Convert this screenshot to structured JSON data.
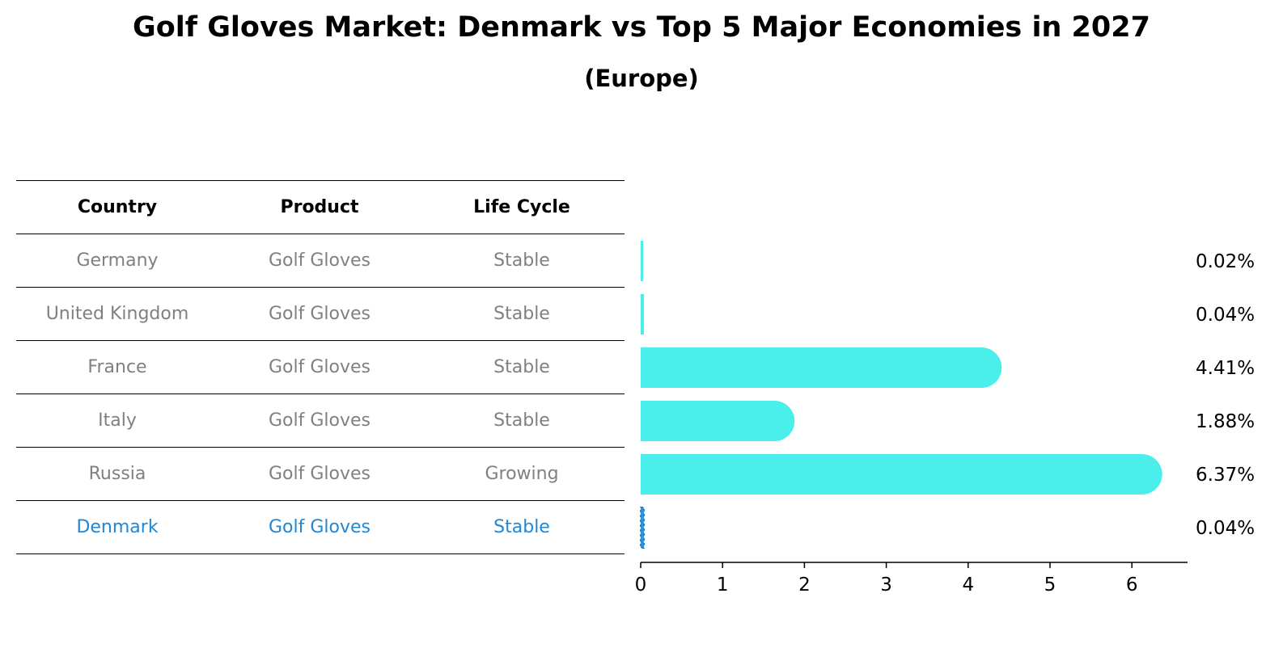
{
  "title": "Golf Gloves Market: Denmark vs Top 5 Major Economies in 2027",
  "subtitle": "(Europe)",
  "table": {
    "headers": [
      "Country",
      "Product",
      "Life Cycle"
    ],
    "rows": [
      {
        "country": "Germany",
        "product": "Golf Gloves",
        "life_cycle": "Stable"
      },
      {
        "country": "United Kingdom",
        "product": "Golf Gloves",
        "life_cycle": "Stable"
      },
      {
        "country": "France",
        "product": "Golf Gloves",
        "life_cycle": "Stable"
      },
      {
        "country": "Italy",
        "product": "Golf Gloves",
        "life_cycle": "Stable"
      },
      {
        "country": "Russia",
        "product": "Golf Gloves",
        "life_cycle": "Growing"
      },
      {
        "country": "Denmark",
        "product": "Golf Gloves",
        "life_cycle": "Stable"
      }
    ]
  },
  "colors": {
    "bar": "#4aeeeb",
    "highlight": "#1f87d6",
    "muted_text": "#808080"
  },
  "chart_data": {
    "type": "bar",
    "orientation": "horizontal",
    "categories": [
      "Germany",
      "United Kingdom",
      "France",
      "Italy",
      "Russia",
      "Denmark"
    ],
    "values": [
      0.02,
      0.04,
      4.41,
      1.88,
      6.37,
      0.04
    ],
    "value_labels": [
      "0.02%",
      "0.04%",
      "4.41%",
      "1.88%",
      "6.37%",
      "0.04%"
    ],
    "highlight_category": "Denmark",
    "xticks": [
      "0",
      "1",
      "2",
      "3",
      "4",
      "5",
      "6"
    ],
    "xlim": [
      0,
      6.7
    ],
    "grid": false
  }
}
